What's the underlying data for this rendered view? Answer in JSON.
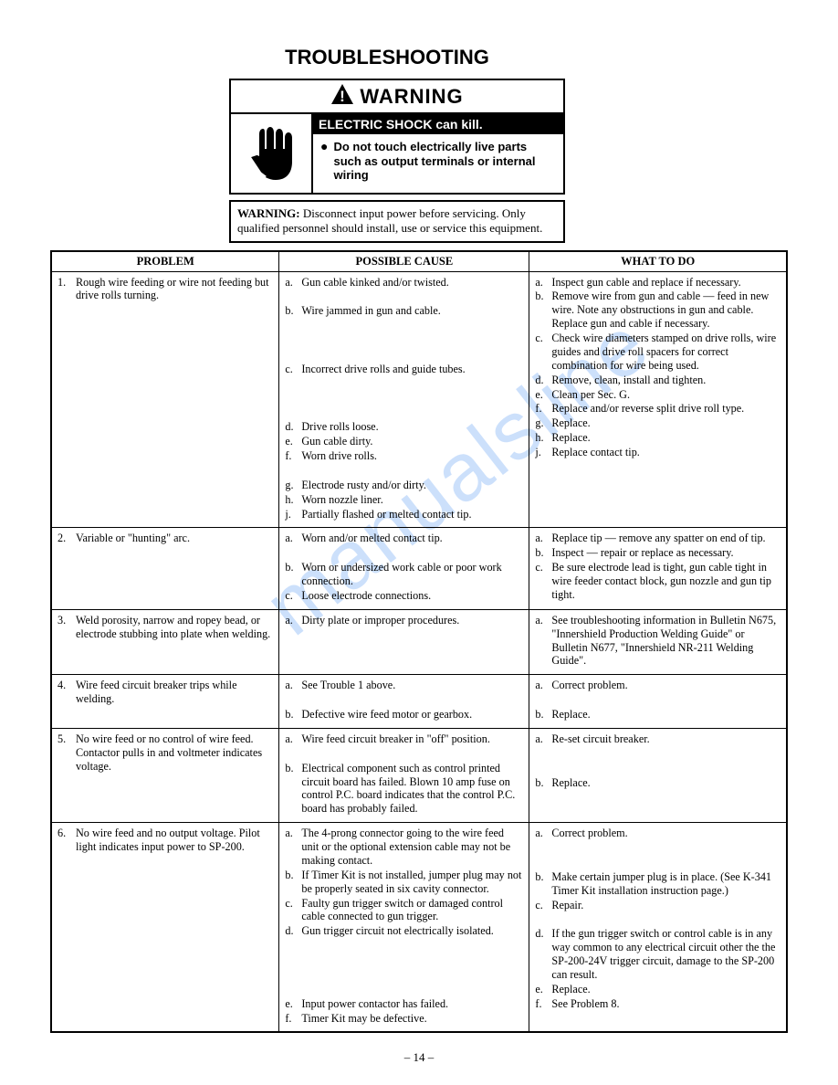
{
  "title": "TROUBLESHOOTING",
  "warning": {
    "header": "WARNING",
    "blackbar": "ELECTRIC SHOCK can kill.",
    "bullet": "Do not touch electrically live parts such as output terminals or internal wiring",
    "disconnect_bold": "WARNING:",
    "disconnect_text": " Disconnect input power before servicing. Only qualified personnel should install, use or service this equipment."
  },
  "columns": [
    "PROBLEM",
    "POSSIBLE CAUSE",
    "WHAT TO DO"
  ],
  "rows": [
    {
      "num": "1.",
      "problem": "Rough wire feeding or wire not feeding but drive rolls turning.",
      "causes": [
        {
          "m": "a.",
          "t": "Gun cable kinked and/or twisted."
        },
        {
          "m": "",
          "t": ""
        },
        {
          "m": "b.",
          "t": "Wire jammed in gun and cable."
        },
        {
          "m": "",
          "t": ""
        },
        {
          "m": "",
          "t": ""
        },
        {
          "m": "",
          "t": ""
        },
        {
          "m": "c.",
          "t": "Incorrect drive rolls and guide tubes."
        },
        {
          "m": "",
          "t": ""
        },
        {
          "m": "",
          "t": ""
        },
        {
          "m": "",
          "t": ""
        },
        {
          "m": "d.",
          "t": "Drive rolls loose."
        },
        {
          "m": "e.",
          "t": "Gun cable dirty."
        },
        {
          "m": "f.",
          "t": "Worn drive rolls."
        },
        {
          "m": "",
          "t": ""
        },
        {
          "m": "g.",
          "t": "Electrode rusty and/or dirty."
        },
        {
          "m": "h.",
          "t": "Worn nozzle liner."
        },
        {
          "m": "j.",
          "t": "Partially flashed or melted contact tip."
        }
      ],
      "todo": [
        {
          "m": "a.",
          "t": "Inspect gun cable and replace if necessary."
        },
        {
          "m": "b.",
          "t": "Remove wire from gun and cable — feed in new wire. Note any obstructions in gun and cable. Replace gun and cable if necessary."
        },
        {
          "m": "c.",
          "t": "Check wire diameters stamped on drive rolls, wire guides and drive roll spacers for correct combination for wire being used."
        },
        {
          "m": "d.",
          "t": "Remove, clean, install and tighten."
        },
        {
          "m": "e.",
          "t": "Clean per Sec. G."
        },
        {
          "m": "f.",
          "t": "Replace and/or reverse split drive roll type."
        },
        {
          "m": "g.",
          "t": "Replace."
        },
        {
          "m": "h.",
          "t": "Replace."
        },
        {
          "m": "j.",
          "t": "Replace contact tip."
        }
      ]
    },
    {
      "num": "2.",
      "problem": "Variable or \"hunting\" arc.",
      "causes": [
        {
          "m": "a.",
          "t": "Worn and/or melted contact tip."
        },
        {
          "m": "",
          "t": ""
        },
        {
          "m": "b.",
          "t": "Worn or undersized work cable or poor work connection."
        },
        {
          "m": "c.",
          "t": "Loose electrode connections."
        }
      ],
      "todo": [
        {
          "m": "a.",
          "t": "Replace tip — remove any spatter on end of tip."
        },
        {
          "m": "b.",
          "t": "Inspect — repair or replace as necessary."
        },
        {
          "m": "c.",
          "t": "Be sure electrode lead is tight, gun cable tight in wire feeder contact block, gun nozzle and gun tip tight."
        }
      ]
    },
    {
      "num": "3.",
      "problem": "Weld porosity, narrow and ropey bead, or electrode stubbing into plate when welding.",
      "causes": [
        {
          "m": "a.",
          "t": "Dirty plate or improper procedures."
        }
      ],
      "todo": [
        {
          "m": "a.",
          "t": "See troubleshooting information in Bulletin N675, \"Innershield Production Welding Guide\" or Bulletin N677, \"Innershield NR-211 Welding Guide\"."
        }
      ]
    },
    {
      "num": "4.",
      "problem": "Wire feed circuit breaker trips while welding.",
      "causes": [
        {
          "m": "a.",
          "t": "See Trouble 1 above."
        },
        {
          "m": "",
          "t": ""
        },
        {
          "m": "b.",
          "t": "Defective wire feed motor or gearbox."
        }
      ],
      "todo": [
        {
          "m": "a.",
          "t": "Correct problem."
        },
        {
          "m": "",
          "t": ""
        },
        {
          "m": "b.",
          "t": "Replace."
        }
      ]
    },
    {
      "num": "5.",
      "problem": "No wire feed or no control of wire feed. Contactor pulls in and voltmeter indicates voltage.",
      "causes": [
        {
          "m": "a.",
          "t": "Wire feed circuit breaker in \"off\" position."
        },
        {
          "m": "",
          "t": ""
        },
        {
          "m": "b.",
          "t": "Electrical component such as control printed circuit board has failed. Blown 10 amp fuse on control P.C. board indicates that the control P.C. board has probably failed."
        }
      ],
      "todo": [
        {
          "m": "a.",
          "t": "Re-set circuit breaker."
        },
        {
          "m": "",
          "t": ""
        },
        {
          "m": "",
          "t": ""
        },
        {
          "m": "b.",
          "t": "Replace."
        }
      ]
    },
    {
      "num": "6.",
      "problem": "No wire feed and no output voltage. Pilot light indicates input power to SP-200.",
      "causes": [
        {
          "m": "a.",
          "t": "The 4-prong connector going to the wire feed unit or the optional extension cable may not be making contact."
        },
        {
          "m": "b.",
          "t": "If Timer Kit is not installed, jumper plug may not be properly seated in six cavity connector."
        },
        {
          "m": "c.",
          "t": "Faulty gun trigger switch or damaged control cable connected to gun trigger."
        },
        {
          "m": "d.",
          "t": "Gun trigger circuit not electrically isolated."
        },
        {
          "m": "",
          "t": ""
        },
        {
          "m": "",
          "t": ""
        },
        {
          "m": "",
          "t": ""
        },
        {
          "m": "",
          "t": ""
        },
        {
          "m": "e.",
          "t": "Input power contactor has failed."
        },
        {
          "m": "f.",
          "t": "Timer Kit may be defective."
        }
      ],
      "todo": [
        {
          "m": "a.",
          "t": "Correct problem."
        },
        {
          "m": "",
          "t": ""
        },
        {
          "m": "",
          "t": ""
        },
        {
          "m": "b.",
          "t": "Make certain jumper plug is in place. (See K-341 Timer Kit installation instruction page.)"
        },
        {
          "m": "c.",
          "t": "Repair."
        },
        {
          "m": "",
          "t": ""
        },
        {
          "m": "d.",
          "t": "If the gun trigger switch or control cable is in any way common to any electrical circuit other the the SP-200-24V trigger circuit, damage to the SP-200 can result."
        },
        {
          "m": "e.",
          "t": "Replace."
        },
        {
          "m": "f.",
          "t": "See Problem 8."
        }
      ]
    }
  ],
  "watermark": "manualsline",
  "page_number": "– 14 –"
}
